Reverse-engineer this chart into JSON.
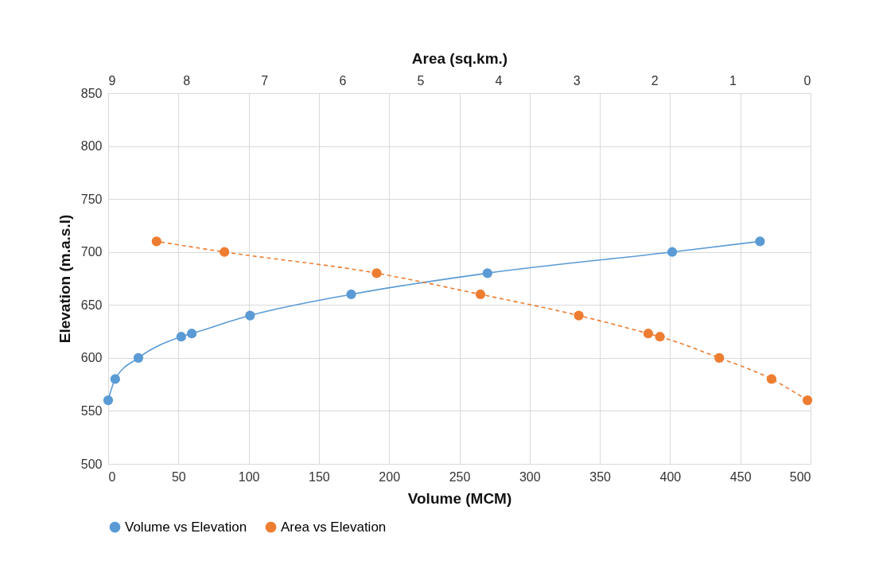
{
  "chart_data": {
    "type": "line",
    "xlabel": "Volume (MCM)",
    "ylabel": "Elevation (m.a.s.l)",
    "x2label": "Area (sq.km.)",
    "xlim": [
      0,
      500
    ],
    "xticks": [
      0,
      50,
      100,
      150,
      200,
      250,
      300,
      350,
      400,
      450,
      500
    ],
    "x2lim": [
      9,
      0
    ],
    "x2ticks": [
      9,
      8,
      7,
      6,
      5,
      4,
      3,
      2,
      1,
      0
    ],
    "ylim": [
      500,
      850
    ],
    "yticks": [
      500,
      550,
      600,
      650,
      700,
      750,
      800,
      850
    ],
    "grid": true,
    "legend": "bottom",
    "marker": "circle",
    "series": [
      {
        "name": "Volume vs Elevation",
        "color": "#5b9bd5",
        "line_style": "solid",
        "x": [
          0,
          5,
          21.5,
          52,
          59.5,
          101,
          173,
          270,
          401.5,
          464
        ],
        "values": [
          560,
          580,
          600,
          620,
          623,
          640,
          660,
          680,
          700,
          710
        ]
      },
      {
        "name": "Area vs Elevation",
        "color": "#ed7d31",
        "line_style": "dashed",
        "axis": "x2",
        "x": [
          0.04,
          0.5,
          1.17,
          1.93,
          2.08,
          2.97,
          4.23,
          5.56,
          7.51,
          8.38
        ],
        "values": [
          560,
          580,
          600,
          620,
          623,
          640,
          660,
          680,
          700,
          710
        ]
      }
    ]
  }
}
